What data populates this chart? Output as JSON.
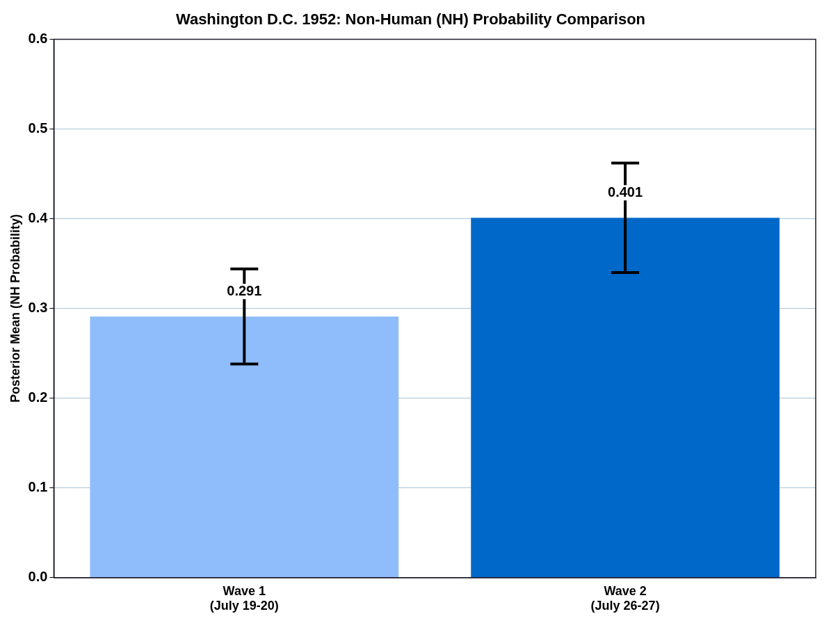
{
  "chart_data": {
    "type": "bar",
    "title": "Washington D.C. 1952: Non-Human (NH) Probability Comparison",
    "ylabel": "Posterior Mean (NH Probability)",
    "categories": [
      "Wave 1\n(July 19-20)",
      "Wave 2\n(July 26-27)"
    ],
    "values": [
      0.291,
      0.401
    ],
    "colors": [
      "#8fbcfb",
      "#0068c9"
    ],
    "errors": [
      0.053,
      0.061
    ],
    "data_labels": true,
    "ylim": [
      0,
      0.6
    ],
    "yticks": [
      {
        "value": 0,
        "label": "0.0"
      },
      0.1,
      0.2,
      0.3,
      0.4,
      0.5,
      0.6
    ],
    "grid": "y",
    "legend": false
  }
}
